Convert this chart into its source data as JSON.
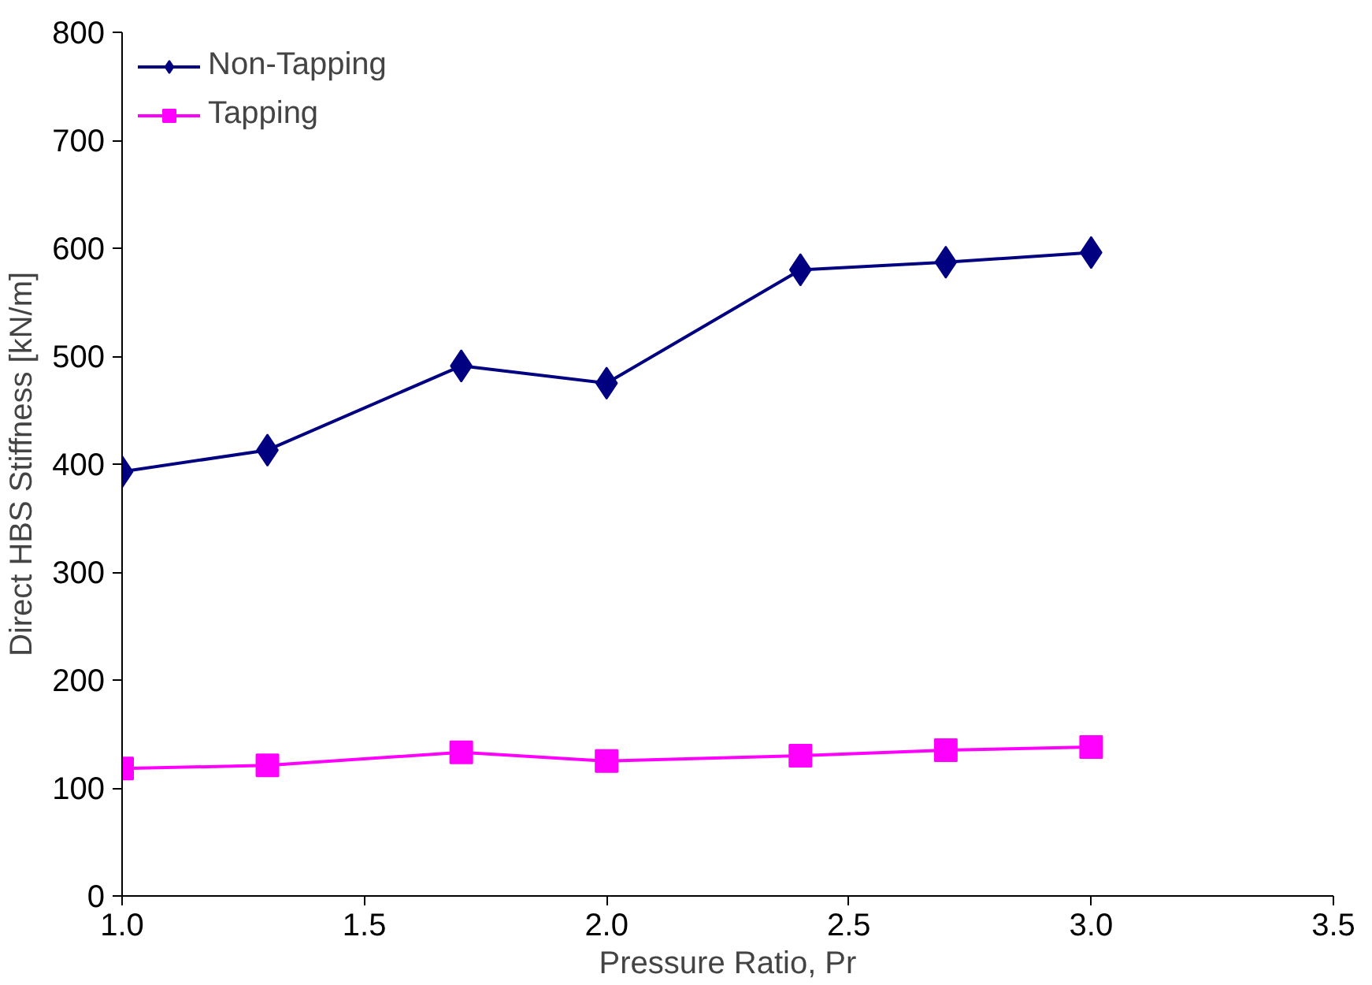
{
  "chart_data": {
    "type": "line",
    "xlabel": "Pressure Ratio, Pr",
    "ylabel": "Direct HBS Stiffness [kN/m]",
    "x": [
      1.0,
      1.3,
      1.7,
      2.0,
      2.4,
      2.7,
      3.0
    ],
    "series": [
      {
        "name": "Non-Tapping",
        "color": "#000080",
        "marker": "diamond",
        "values": [
          393,
          413,
          491,
          475,
          580,
          587,
          596
        ]
      },
      {
        "name": "Tapping",
        "color": "#ff00ff",
        "marker": "square",
        "values": [
          118,
          121,
          133,
          125,
          130,
          135,
          138
        ]
      }
    ],
    "xlim": [
      1.0,
      3.5
    ],
    "xticks": [
      {
        "value": 1.0,
        "label": "1.0"
      },
      {
        "value": 1.5,
        "label": "1.5"
      },
      {
        "value": 2.0,
        "label": "2.0"
      },
      {
        "value": 2.5,
        "label": "2.5"
      },
      {
        "value": 3.0,
        "label": "3.0"
      },
      {
        "value": 3.5,
        "label": "3.5"
      }
    ],
    "ylim": [
      0,
      800
    ],
    "yticks": [
      0,
      100,
      200,
      300,
      400,
      500,
      600,
      700,
      800
    ],
    "grid": false,
    "legend": "top left",
    "line_style": "solid"
  }
}
